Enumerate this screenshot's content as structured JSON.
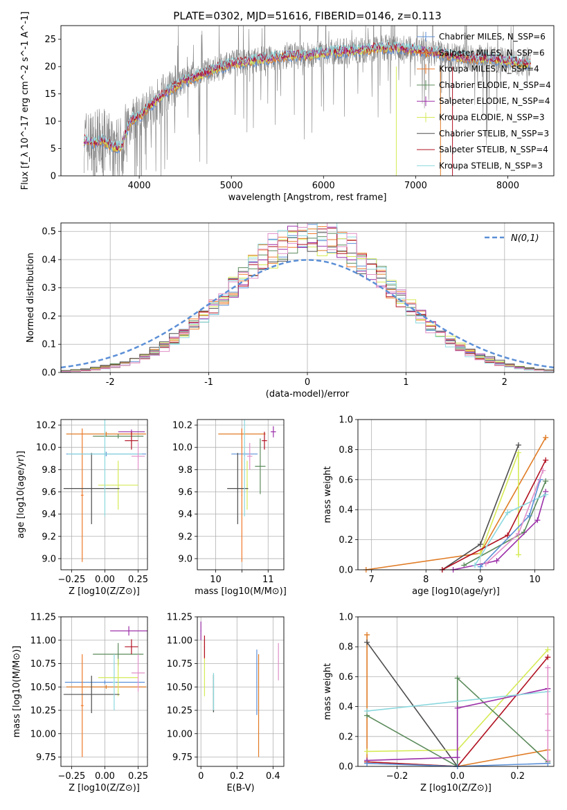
{
  "colors": {
    "chab_miles": "#5b8fd6",
    "salp_miles": "#e07b24",
    "krou_miles": "#f07a2a",
    "chab_elod": "#5a8a5a",
    "salp_elod": "#9b2fa8",
    "krou_elod": "#d6ea55",
    "chab_stel": "#4c4c4c",
    "salp_stel": "#b01020",
    "krou_stel": "#8ad8de",
    "data": "#808080",
    "pink": "#e08fc8"
  },
  "chart_data": [
    {
      "id": "spectrum",
      "type": "line",
      "title": "PLATE=0302, MJD=51616, FIBERID=0146, z=0.113",
      "xlabel": "wavelength [Angstrom, rest frame]",
      "ylabel": "Flux [f_λ 10^-17 erg cm^-2 s^-1 A^-1]",
      "xlim": [
        3150,
        8500
      ],
      "ylim": [
        0,
        27.5
      ],
      "xticks": [
        4000,
        5000,
        6000,
        7000,
        8000
      ],
      "yticks": [
        0,
        5,
        10,
        15,
        20,
        25
      ],
      "continuum": {
        "x": [
          3400,
          3500,
          3600,
          3700,
          3800,
          3900,
          4000,
          4100,
          4200,
          4300,
          4400,
          4500,
          4600,
          4800,
          5000,
          5200,
          5400,
          5600,
          5800,
          6000,
          6200,
          6400,
          6600,
          6800,
          7000,
          7200,
          7400,
          7600,
          7800,
          8000,
          8200
        ],
        "y": [
          6.5,
          6.0,
          6.5,
          5.5,
          5.0,
          10.0,
          11.0,
          12.5,
          14.0,
          15.5,
          16.5,
          17.5,
          18.0,
          19.5,
          20.5,
          21.0,
          21.5,
          22.0,
          22.0,
          22.5,
          22.8,
          23.0,
          23.5,
          23.5,
          23.0,
          22.5,
          22.0,
          21.5,
          21.5,
          21.0,
          20.5
        ]
      },
      "legend": [
        {
          "label": "Chabrier MILES, N_SSP=6",
          "color": "chab_miles",
          "style": "marker"
        },
        {
          "label": "Salpeter MILES, N_SSP=6",
          "color": "salp_miles",
          "style": "marker"
        },
        {
          "label": "Kroupa MILES, N_SSP=4",
          "color": "krou_miles",
          "style": "marker"
        },
        {
          "label": "Chabrier ELODIE, N_SSP=4",
          "color": "chab_elod",
          "style": "marker"
        },
        {
          "label": "Salpeter ELODIE, N_SSP=4",
          "color": "salp_elod",
          "style": "marker"
        },
        {
          "label": "Kroupa ELODIE, N_SSP=3",
          "color": "krou_elod",
          "style": "marker"
        },
        {
          "label": "Chabrier STELIB, N_SSP=3",
          "color": "chab_stel",
          "style": "line"
        },
        {
          "label": "Salpeter STELIB, N_SSP=4",
          "color": "salp_stel",
          "style": "line"
        },
        {
          "label": "Kroupa STELIB, N_SSP=3",
          "color": "krou_stel",
          "style": "line"
        }
      ]
    },
    {
      "id": "residuals",
      "type": "line",
      "xlabel": "(data-model)/error",
      "ylabel": "Normed distribution",
      "xlim": [
        -2.5,
        2.5
      ],
      "ylim": [
        0,
        0.53
      ],
      "xticks": [
        -2,
        -1,
        0,
        1,
        2
      ],
      "yticks": [
        0.0,
        0.1,
        0.2,
        0.3,
        0.4,
        0.5
      ],
      "legend": "N(0,1)",
      "grid": true
    },
    {
      "id": "age_vs_Z",
      "type": "scatter",
      "xlabel": "Z [log10(Z/Z⊙)]",
      "ylabel": "age [log10(age/yr)]",
      "xlim": [
        -0.33,
        0.32
      ],
      "ylim": [
        8.9,
        10.25
      ],
      "xticks": [
        -0.25,
        0.0,
        0.25
      ],
      "xticklabels": [
        "−0.25",
        "0.00",
        "0.25"
      ],
      "yticks": [
        9.0,
        9.2,
        9.4,
        9.6,
        9.8,
        10.0,
        10.2
      ],
      "points": [
        {
          "c": "chab_miles",
          "x": 0.01,
          "xe": 0.3,
          "y": 9.94,
          "ye": 0.02
        },
        {
          "c": "salp_miles",
          "x": 0.01,
          "xe": 0.3,
          "y": 10.12,
          "ye": 0.02
        },
        {
          "c": "krou_miles",
          "x": -0.17,
          "xe": 0.01,
          "y": 9.57,
          "ye": 0.6
        },
        {
          "c": "chab_elod",
          "x": 0.1,
          "xe": 0.19,
          "y": 10.1,
          "ye": 0.02
        },
        {
          "c": "salp_elod",
          "x": 0.2,
          "xe": 0.1,
          "y": 10.14,
          "ye": 0.02
        },
        {
          "c": "krou_elod",
          "x": 0.1,
          "xe": 0.15,
          "y": 9.66,
          "ye": 0.22
        },
        {
          "c": "chab_stel",
          "x": -0.1,
          "xe": 0.21,
          "y": 9.63,
          "ye": 0.32
        },
        {
          "c": "salp_stel",
          "x": 0.2,
          "xe": 0.05,
          "y": 10.06,
          "ye": 0.08
        },
        {
          "c": "krou_stel",
          "x": 0.0,
          "xe": 0.28,
          "y": 9.94,
          "ye": 0.56
        },
        {
          "c": "pink",
          "x": 0.25,
          "xe": 0.05,
          "y": 9.92,
          "ye": 0.12
        }
      ]
    },
    {
      "id": "age_vs_mass",
      "type": "scatter",
      "xlabel": "mass [log10(M/M⊙)]",
      "ylabel": "",
      "xlim": [
        9.65,
        11.3
      ],
      "ylim": [
        8.9,
        10.25
      ],
      "xticks": [
        10,
        10.5,
        11
      ],
      "xticklabels": [
        "10",
        "",
        "11"
      ],
      "yticks": [
        9.0,
        9.2,
        9.4,
        9.6,
        9.8,
        10.0,
        10.2
      ],
      "points": [
        {
          "c": "chab_miles",
          "x": 10.55,
          "xe": 0.25,
          "y": 9.94,
          "ye": 0.02
        },
        {
          "c": "salp_miles",
          "x": 10.5,
          "xe": 0.45,
          "y": 10.12,
          "ye": 0.05
        },
        {
          "c": "krou_miles",
          "x": 10.5,
          "xe": 0.01,
          "y": 9.57,
          "ye": 0.6
        },
        {
          "c": "chab_elod",
          "x": 10.85,
          "xe": 0.1,
          "y": 9.83,
          "ye": 0.25
        },
        {
          "c": "salp_elod",
          "x": 11.1,
          "xe": 0.05,
          "y": 10.14,
          "ye": 0.05
        },
        {
          "c": "krou_elod",
          "x": 10.6,
          "xe": 0.01,
          "y": 9.66,
          "ye": 0.22
        },
        {
          "c": "chab_stel",
          "x": 10.42,
          "xe": 0.2,
          "y": 9.63,
          "ye": 0.32
        },
        {
          "c": "salp_stel",
          "x": 10.93,
          "xe": 0.05,
          "y": 10.06,
          "ye": 0.08
        },
        {
          "c": "krou_stel",
          "x": 10.55,
          "xe": 0.01,
          "y": 9.94,
          "ye": 0.56
        },
        {
          "c": "pink",
          "x": 10.65,
          "xe": 0.05,
          "y": 9.92,
          "ye": 0.12
        }
      ]
    },
    {
      "id": "weight_vs_age",
      "type": "line",
      "xlabel": "age [log10(age/yr)]",
      "ylabel": "mass weight",
      "xlim": [
        6.75,
        10.35
      ],
      "ylim": [
        0.0,
        1.0
      ],
      "xticks": [
        7,
        8,
        9,
        10
      ],
      "yticks": [
        0.0,
        0.2,
        0.4,
        0.6,
        0.8,
        1.0
      ],
      "grid": true,
      "series": [
        {
          "c": "salp_miles",
          "x": [
            6.9,
            9.0,
            10.2
          ],
          "y": [
            0.0,
            0.11,
            0.88
          ]
        },
        {
          "c": "chab_stel",
          "x": [
            8.3,
            9.0,
            9.7
          ],
          "y": [
            0.0,
            0.17,
            0.83
          ]
        },
        {
          "c": "krou_elod",
          "x": [
            9.0,
            9.7,
            9.7
          ],
          "y": [
            0.11,
            0.78,
            0.1
          ]
        },
        {
          "c": "salp_stel",
          "x": [
            8.3,
            9.5,
            10.2
          ],
          "y": [
            0.0,
            0.23,
            0.73
          ]
        },
        {
          "c": "chab_elod",
          "x": [
            8.7,
            9.8,
            10.2
          ],
          "y": [
            0.03,
            0.25,
            0.59
          ]
        },
        {
          "c": "salp_elod",
          "x": [
            8.5,
            9.3,
            10.05,
            10.2
          ],
          "y": [
            0.0,
            0.06,
            0.33,
            0.52
          ]
        },
        {
          "c": "krou_stel",
          "x": [
            8.9,
            9.5,
            10.2
          ],
          "y": [
            0.03,
            0.38,
            0.5
          ]
        },
        {
          "c": "chab_miles",
          "x": [
            9.0,
            9.9,
            10.1
          ],
          "y": [
            0.02,
            0.36,
            0.6
          ]
        },
        {
          "c": "pink",
          "x": [
            9.1,
            9.7,
            10.15
          ],
          "y": [
            0.04,
            0.24,
            0.66
          ]
        }
      ]
    },
    {
      "id": "mass_vs_Z",
      "type": "scatter",
      "xlabel": "Z [log10(Z/Z⊙)]",
      "ylabel": "mass [log10(M/M⊙)]",
      "xlim": [
        -0.33,
        0.32
      ],
      "ylim": [
        9.65,
        11.25
      ],
      "xticks": [
        -0.25,
        0.0,
        0.25
      ],
      "xticklabels": [
        "−0.25",
        "0.00",
        "0.25"
      ],
      "yticks": [
        9.75,
        10.0,
        10.25,
        10.5,
        10.75,
        11.0,
        11.25
      ],
      "points": [
        {
          "c": "chab_miles",
          "x": 0.0,
          "xe": 0.3,
          "y": 10.55,
          "ye": 0.02
        },
        {
          "c": "salp_miles",
          "x": 0.01,
          "xe": 0.3,
          "y": 10.5,
          "ye": 0.02
        },
        {
          "c": "krou_miles",
          "x": -0.17,
          "xe": 0.01,
          "y": 10.3,
          "ye": 0.55
        },
        {
          "c": "chab_elod",
          "x": 0.1,
          "xe": 0.19,
          "y": 10.85,
          "ye": 0.12
        },
        {
          "c": "salp_elod",
          "x": 0.18,
          "xe": 0.14,
          "y": 11.1,
          "ye": 0.05
        },
        {
          "c": "krou_elod",
          "x": 0.1,
          "xe": 0.15,
          "y": 10.6,
          "ye": 0.2
        },
        {
          "c": "chab_stel",
          "x": -0.1,
          "xe": 0.21,
          "y": 10.42,
          "ye": 0.2
        },
        {
          "c": "salp_stel",
          "x": 0.2,
          "xe": 0.05,
          "y": 10.93,
          "ye": 0.08
        },
        {
          "c": "krou_stel",
          "x": 0.07,
          "xe": 0.01,
          "y": 10.55,
          "ye": 0.3
        },
        {
          "c": "pink",
          "x": 0.25,
          "xe": 0.05,
          "y": 10.65,
          "ye": 0.2
        }
      ]
    },
    {
      "id": "mass_vs_ebv",
      "type": "scatter",
      "xlabel": "E(B-V)",
      "ylabel": "",
      "xlim": [
        -0.02,
        0.46
      ],
      "ylim": [
        9.65,
        11.25
      ],
      "xticks": [
        0.0,
        0.2,
        0.4
      ],
      "yticks": [
        9.75,
        10.0,
        10.25,
        10.5,
        10.75,
        11.0,
        11.25
      ],
      "points": [
        {
          "c": "chab_miles",
          "x": 0.31,
          "xe": 0.002,
          "y": 10.55,
          "ye": 0.35
        },
        {
          "c": "salp_miles",
          "x": 0.32,
          "xe": 0.002,
          "y": 10.3,
          "ye": 0.55
        },
        {
          "c": "krou_miles",
          "x": 0.02,
          "xe": 0.002,
          "y": 10.9,
          "ye": 0.1
        },
        {
          "c": "chab_elod",
          "x": 0.07,
          "xe": 0.002,
          "y": 10.43,
          "ye": 0.2
        },
        {
          "c": "salp_elod",
          "x": 0.0,
          "xe": 0.002,
          "y": 11.1,
          "ye": 0.1
        },
        {
          "c": "krou_elod",
          "x": 0.02,
          "xe": 0.002,
          "y": 10.6,
          "ye": 0.2
        },
        {
          "c": "chab_stel",
          "x": 0.07,
          "xe": 0.002,
          "y": 10.43,
          "ye": 0.2
        },
        {
          "c": "salp_stel",
          "x": 0.02,
          "xe": 0.002,
          "y": 10.93,
          "ye": 0.12
        },
        {
          "c": "krou_stel",
          "x": 0.07,
          "xe": 0.002,
          "y": 10.45,
          "ye": 0.2
        },
        {
          "c": "pink",
          "x": 0.43,
          "xe": 0.002,
          "y": 10.77,
          "ye": 0.2
        }
      ]
    },
    {
      "id": "weight_vs_Z",
      "type": "line",
      "xlabel": "Z [log10(Z/Z⊙)]",
      "ylabel": "mass weight",
      "xlim": [
        -0.33,
        0.32
      ],
      "ylim": [
        0.0,
        1.0
      ],
      "xticks": [
        -0.2,
        0.0,
        0.2
      ],
      "xticklabels": [
        "−0.2",
        "0.0",
        "0.2"
      ],
      "yticks": [
        0.0,
        0.2,
        0.4,
        0.6,
        0.8,
        1.0
      ],
      "grid": true,
      "series": [
        {
          "c": "salp_miles",
          "x": [
            -0.3,
            -0.3,
            0.0,
            0.3
          ],
          "y": [
            0.88,
            0.03,
            0.0,
            0.11
          ]
        },
        {
          "c": "chab_stel",
          "x": [
            -0.3,
            0.0
          ],
          "y": [
            0.83,
            0.0
          ]
        },
        {
          "c": "krou_elod",
          "x": [
            -0.3,
            0.0,
            0.3
          ],
          "y": [
            0.1,
            0.11,
            0.78
          ]
        },
        {
          "c": "salp_stel",
          "x": [
            -0.3,
            0.0,
            0.3
          ],
          "y": [
            0.03,
            0.0,
            0.73
          ]
        },
        {
          "c": "chab_elod",
          "x": [
            -0.3,
            0.0,
            0.0,
            0.3
          ],
          "y": [
            0.34,
            0.0,
            0.59,
            0.03
          ]
        },
        {
          "c": "salp_elod",
          "x": [
            -0.3,
            0.0,
            0.0,
            0.3
          ],
          "y": [
            0.04,
            0.06,
            0.39,
            0.52
          ]
        },
        {
          "c": "krou_stel",
          "x": [
            -0.3,
            0.3
          ],
          "y": [
            0.37,
            0.5
          ]
        },
        {
          "c": "chab_miles",
          "x": [
            -0.3,
            0.0,
            0.3
          ],
          "y": [
            0.02,
            0.0,
            0.02
          ]
        },
        {
          "c": "pink",
          "x": [
            0.3,
            0.3,
            0.3,
            0.3
          ],
          "y": [
            0.66,
            0.35,
            0.24,
            0.04
          ]
        }
      ]
    }
  ]
}
